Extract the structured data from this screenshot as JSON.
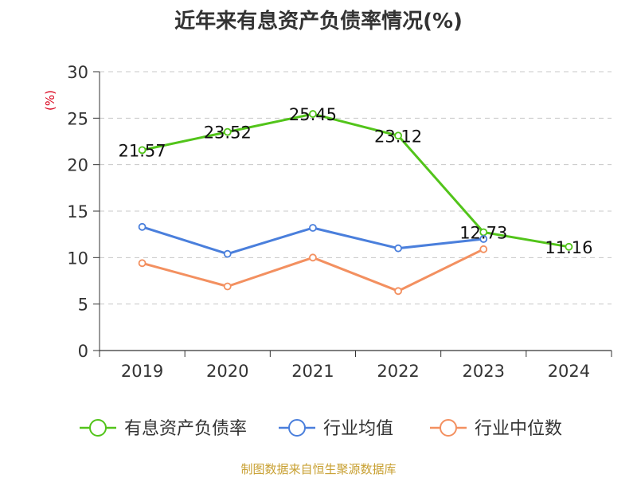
{
  "chart_data": {
    "type": "line",
    "title": "近年来有息资产负债率情况(%)",
    "ylabel": "(%)",
    "ylim": [
      0,
      30
    ],
    "yticks": [
      0,
      5,
      10,
      15,
      20,
      25,
      30
    ],
    "categories": [
      "2019",
      "2020",
      "2021",
      "2022",
      "2023",
      "2024"
    ],
    "grid": true,
    "legend_position": "bottom",
    "series": [
      {
        "name": "有息资产负债率",
        "color": "#52c41a",
        "values": [
          21.57,
          23.52,
          25.45,
          23.12,
          12.73,
          11.16
        ],
        "labels": [
          "21.57",
          "23.52",
          "25.45",
          "23.12",
          "12.73",
          "11.16"
        ]
      },
      {
        "name": "行业均值",
        "color": "#4a7fdc",
        "values": [
          13.3,
          10.4,
          13.2,
          11.0,
          12.0,
          null
        ]
      },
      {
        "name": "行业中位数",
        "color": "#f39060",
        "values": [
          9.4,
          6.9,
          10.0,
          6.4,
          10.9,
          null
        ]
      }
    ]
  },
  "footer": {
    "source": "制图数据来自恒生聚源数据库",
    "color": "#c8a032"
  }
}
